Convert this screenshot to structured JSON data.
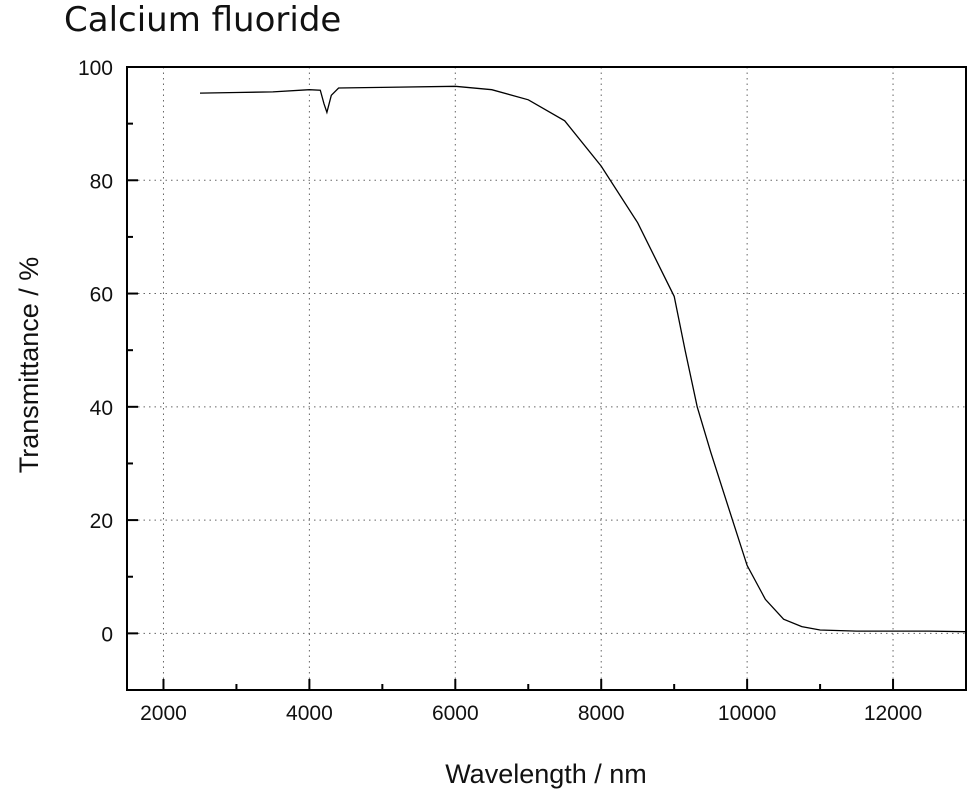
{
  "title": "Calcium fluoride",
  "chart_data": {
    "type": "line",
    "title": "Calcium fluoride",
    "xlabel": "Wavelength / nm",
    "ylabel": "Transmittance / %",
    "xlim": [
      1500,
      13000
    ],
    "ylim": [
      -10,
      100
    ],
    "xticks": [
      2000,
      4000,
      6000,
      8000,
      10000,
      12000
    ],
    "yticks": [
      0,
      20,
      40,
      60,
      80,
      100
    ],
    "grid": true,
    "line_color": "#000000",
    "series": [
      {
        "x": [
          2500,
          3000,
          3500,
          4000,
          4150,
          4200,
          4240,
          4300,
          4400,
          5000,
          6000,
          6500,
          7000,
          7500,
          8000,
          8500,
          9000,
          9150,
          9315,
          9500,
          9800,
          10000,
          10250,
          10500,
          10750,
          11000,
          11500,
          12000,
          12500,
          13000
        ],
        "y": [
          95.4,
          95.5,
          95.6,
          96.0,
          95.9,
          93.5,
          92.0,
          95.0,
          96.3,
          96.4,
          96.6,
          96.0,
          94.2,
          90.5,
          82.5,
          72.5,
          59.5,
          50,
          40,
          32,
          20,
          12,
          6,
          2.5,
          1.2,
          0.6,
          0.4,
          0.4,
          0.4,
          0.3
        ]
      }
    ]
  }
}
